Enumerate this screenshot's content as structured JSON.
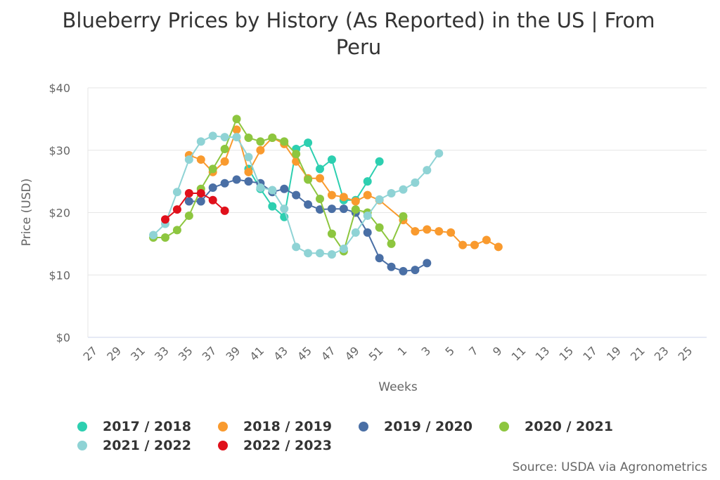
{
  "title_line1": "Blueberry Prices by History (As Reported) in the US | From",
  "title_line2": "Peru",
  "source": "Source: USDA via Agronometrics",
  "chart_data": {
    "type": "line",
    "title": "Blueberry Prices by History (As Reported) in the US | From Peru",
    "xlabel": "Weeks",
    "ylabel": "Price (USD)",
    "ylim": [
      0,
      40
    ],
    "yticks": [
      "$0",
      "$10",
      "$20",
      "$30",
      "$40"
    ],
    "grid": true,
    "legend_position": "bottom",
    "categories": [
      27,
      28,
      29,
      30,
      31,
      32,
      33,
      34,
      35,
      36,
      37,
      38,
      39,
      40,
      41,
      42,
      43,
      44,
      45,
      46,
      47,
      48,
      49,
      50,
      51,
      52,
      1,
      2,
      3,
      4,
      5,
      6,
      7,
      8,
      9,
      10,
      11,
      12,
      13,
      14,
      15,
      16,
      17,
      18,
      19,
      20,
      21,
      22,
      23,
      24,
      25,
      26
    ],
    "xtick_labels": [
      "27",
      "29",
      "31",
      "33",
      "35",
      "37",
      "39",
      "41",
      "43",
      "45",
      "47",
      "49",
      "51",
      "1",
      "3",
      "5",
      "7",
      "9",
      "11",
      "13",
      "15",
      "17",
      "19",
      "21",
      "23",
      "25"
    ],
    "series": [
      {
        "name": "2017 / 2018",
        "color": "#2dcfb0",
        "points": [
          [
            40,
            27
          ],
          [
            41,
            23.8
          ],
          [
            42,
            21
          ],
          [
            43,
            19.3
          ],
          [
            44,
            30.2
          ],
          [
            45,
            31.2
          ],
          [
            46,
            27
          ],
          [
            47,
            28.5
          ],
          [
            48,
            22
          ],
          [
            49,
            22
          ],
          [
            50,
            25
          ],
          [
            51,
            28.2
          ]
        ]
      },
      {
        "name": "2018 / 2019",
        "color": "#f99a2e",
        "points": [
          [
            35,
            29.2
          ],
          [
            36,
            28.5
          ],
          [
            37,
            26.5
          ],
          [
            38,
            28.2
          ],
          [
            39,
            33.3
          ],
          [
            40,
            26.5
          ],
          [
            41,
            30
          ],
          [
            42,
            32
          ],
          [
            43,
            31
          ],
          [
            44,
            28.2
          ],
          [
            45,
            25.5
          ],
          [
            46,
            25.5
          ],
          [
            47,
            22.8
          ],
          [
            48,
            22.5
          ],
          [
            49,
            21.8
          ],
          [
            50,
            22.8
          ],
          [
            51,
            22
          ],
          [
            1,
            18.8
          ],
          [
            2,
            17
          ],
          [
            3,
            17.3
          ],
          [
            4,
            17
          ],
          [
            5,
            16.8
          ],
          [
            6,
            14.8
          ],
          [
            7,
            14.8
          ],
          [
            8,
            15.6
          ],
          [
            9,
            14.5
          ]
        ]
      },
      {
        "name": "2019 / 2020",
        "color": "#4a6fa5",
        "points": [
          [
            35,
            21.8
          ],
          [
            36,
            21.8
          ],
          [
            37,
            24
          ],
          [
            38,
            24.7
          ],
          [
            39,
            25.3
          ],
          [
            40,
            25
          ],
          [
            41,
            24.7
          ],
          [
            42,
            23.3
          ],
          [
            43,
            23.8
          ],
          [
            44,
            22.8
          ],
          [
            45,
            21.3
          ],
          [
            46,
            20.5
          ],
          [
            47,
            20.6
          ],
          [
            48,
            20.6
          ],
          [
            49,
            20
          ],
          [
            50,
            16.8
          ],
          [
            51,
            12.7
          ],
          [
            52,
            11.3
          ],
          [
            1,
            10.6
          ],
          [
            2,
            10.8
          ],
          [
            3,
            11.9
          ]
        ]
      },
      {
        "name": "2020 / 2021",
        "color": "#8dc63f",
        "points": [
          [
            32,
            16
          ],
          [
            33,
            16
          ],
          [
            34,
            17.2
          ],
          [
            35,
            19.5
          ],
          [
            36,
            23.8
          ],
          [
            37,
            27
          ],
          [
            38,
            30.2
          ],
          [
            39,
            35
          ],
          [
            40,
            32
          ],
          [
            41,
            31.4
          ],
          [
            42,
            32
          ],
          [
            43,
            31.4
          ],
          [
            44,
            29.4
          ],
          [
            45,
            25.3
          ],
          [
            46,
            22.2
          ],
          [
            47,
            16.6
          ],
          [
            48,
            13.8
          ],
          [
            49,
            20.5
          ],
          [
            50,
            20
          ],
          [
            51,
            17.6
          ],
          [
            52,
            15
          ],
          [
            1,
            19.4
          ]
        ]
      },
      {
        "name": "2021 / 2022",
        "color": "#8fd3d5",
        "points": [
          [
            32,
            16.4
          ],
          [
            33,
            18.2
          ],
          [
            34,
            23.3
          ],
          [
            35,
            28.5
          ],
          [
            36,
            31.4
          ],
          [
            37,
            32.3
          ],
          [
            38,
            32.1
          ],
          [
            39,
            32.1
          ],
          [
            40,
            28.9
          ],
          [
            41,
            24
          ],
          [
            42,
            23.6
          ],
          [
            43,
            20.6
          ],
          [
            44,
            14.5
          ],
          [
            45,
            13.5
          ],
          [
            46,
            13.5
          ],
          [
            47,
            13.3
          ],
          [
            48,
            14.2
          ],
          [
            49,
            16.8
          ],
          [
            50,
            19.5
          ],
          [
            51,
            22.1
          ],
          [
            52,
            23.1
          ],
          [
            1,
            23.7
          ],
          [
            2,
            24.8
          ],
          [
            3,
            26.8
          ],
          [
            4,
            29.5
          ]
        ]
      },
      {
        "name": "2022 / 2023",
        "color": "#e0101b",
        "points": [
          [
            33,
            18.9
          ],
          [
            34,
            20.5
          ],
          [
            35,
            23.1
          ],
          [
            36,
            23.1
          ],
          [
            37,
            22
          ],
          [
            38,
            20.3
          ]
        ]
      }
    ]
  }
}
